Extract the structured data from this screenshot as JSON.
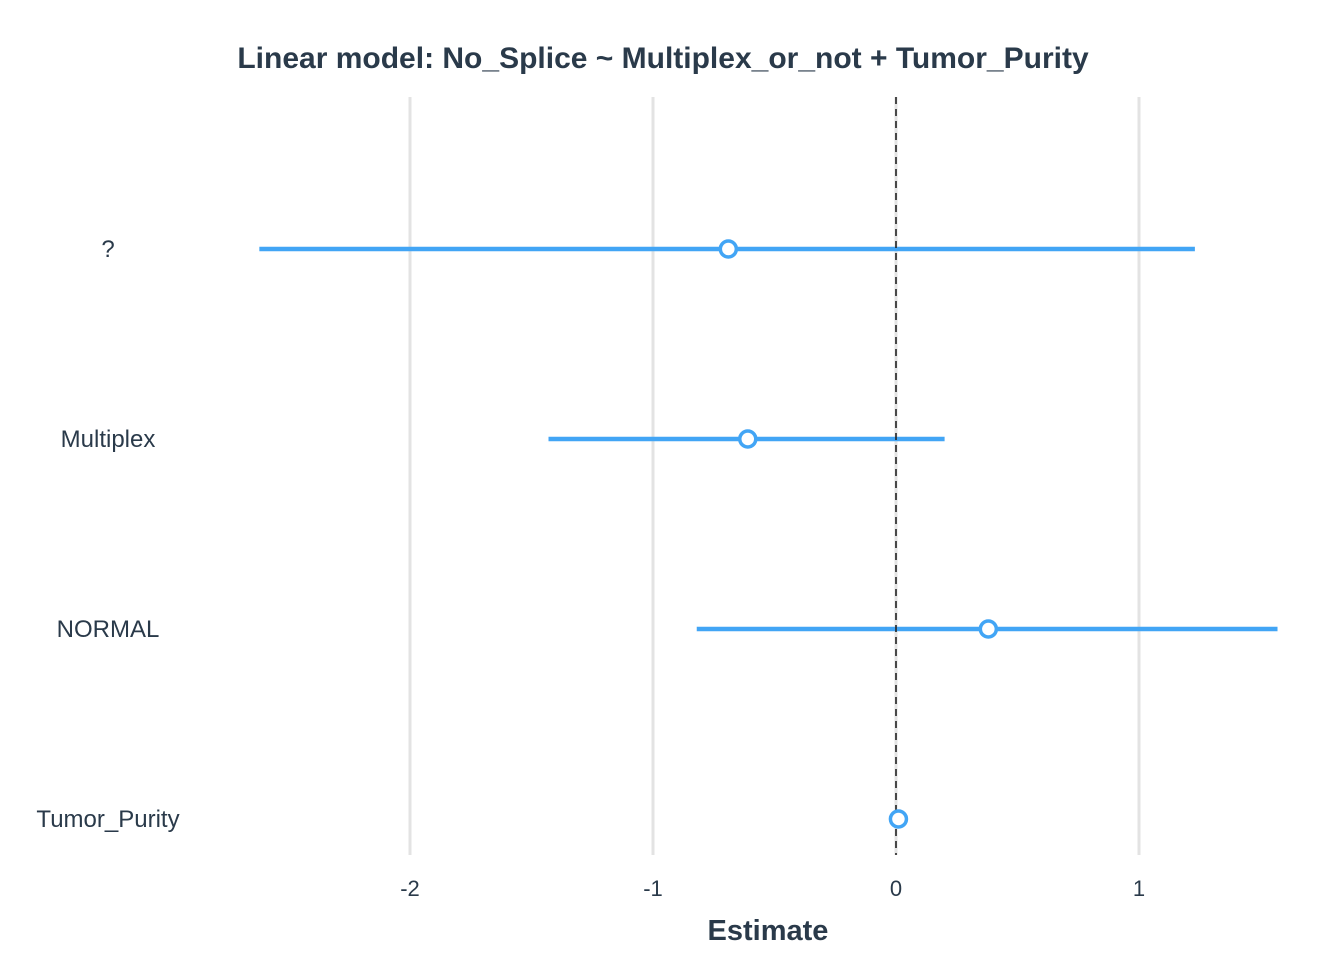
{
  "chart_data": {
    "type": "scatter",
    "subtype": "coefficient-plot",
    "title": "Linear model: No_Splice ~ Multiplex_or_not + Tumor_Purity",
    "xlabel": "Estimate",
    "ylabel": "",
    "xlim": [
      -2.6,
      1.57
    ],
    "x_ticks": [
      -2,
      -1,
      0,
      1
    ],
    "x_tick_labels": [
      "-2",
      "-1",
      "0",
      "1"
    ],
    "reference_line": 0,
    "grid": "vertical major",
    "legend": "none",
    "color": "#42a5f5",
    "terms": [
      {
        "label": "?",
        "estimate": -0.69,
        "ci_low": -2.62,
        "ci_high": 1.23
      },
      {
        "label": "Multiplex",
        "estimate": -0.61,
        "ci_low": -1.43,
        "ci_high": 0.2
      },
      {
        "label": "NORMAL",
        "estimate": 0.38,
        "ci_low": -0.82,
        "ci_high": 1.57
      },
      {
        "label": "Tumor_Purity",
        "estimate": 0.01,
        "ci_low": 0.005,
        "ci_high": 0.015
      }
    ]
  }
}
